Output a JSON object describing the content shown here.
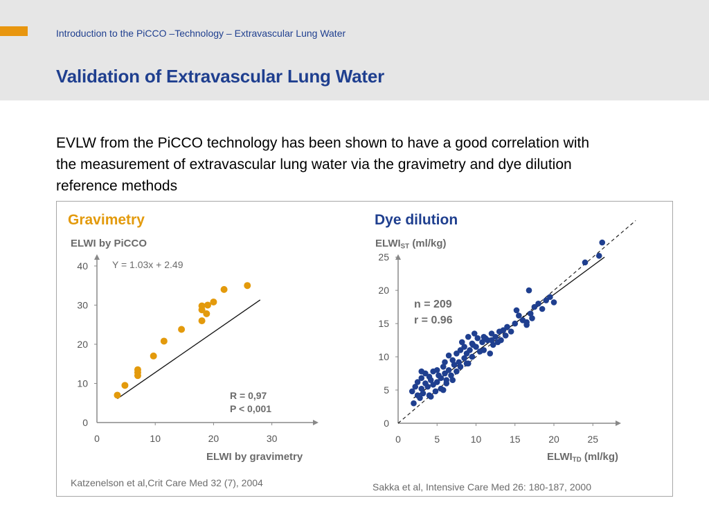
{
  "header": {
    "breadcrumb": "Introduction to the PiCCO –Technology – Extravascular Lung Water",
    "title": "Validation of Extravascular Lung Water"
  },
  "intro": "EVLW from the PiCCO technology has been shown to have a good correlation with the measurement of extravascular lung water via the gravimetry and dye dilution reference methods",
  "colors": {
    "accent": "#e8960f",
    "brand_blue": "#1f3f8f",
    "gravimetry": "#e39a0c",
    "dye": "#1f3f8f"
  },
  "chart_data": [
    {
      "type": "scatter",
      "title": "Gravimetry",
      "ylabel": "ELWI by PiCCO",
      "xlabel": "ELWI by gravimetry",
      "xlim": [
        0,
        38
      ],
      "ylim": [
        0,
        43
      ],
      "xticks": [
        0,
        10,
        20,
        30
      ],
      "yticks": [
        0,
        10,
        20,
        30,
        40
      ],
      "equation": "Y = 1.03x + 2.49",
      "stats": [
        "R = 0,97",
        "P < 0,001"
      ],
      "citation": "Katzenelson et al,Crit Care Med 32 (7), 2004",
      "regression": {
        "slope": 1.03,
        "intercept": 2.49,
        "x_range": [
          3.5,
          28
        ]
      },
      "points": {
        "x": [
          3.5,
          4.8,
          7.0,
          7.0,
          7.0,
          9.7,
          11.5,
          14.5,
          18.0,
          18.0,
          18.0,
          18.8,
          19.0,
          20.0,
          21.8,
          25.8
        ],
        "y": [
          7.0,
          9.5,
          12.0,
          12.8,
          13.5,
          17.0,
          20.8,
          23.8,
          26.0,
          28.8,
          29.8,
          27.8,
          30.0,
          30.8,
          34.0,
          35.0
        ]
      }
    },
    {
      "type": "scatter",
      "title": "Dye dilution",
      "ylabel": {
        "main": "ELWI",
        "sub": "ST",
        "unit": "(ml/kg)"
      },
      "xlabel": {
        "main": "ELWI",
        "sub": "TD",
        "unit": "(ml/kg)"
      },
      "xlim": [
        0,
        28
      ],
      "ylim": [
        0,
        27
      ],
      "xticks": [
        0,
        5,
        10,
        15,
        20,
        25
      ],
      "yticks": [
        0,
        5,
        10,
        15,
        20,
        25
      ],
      "stats": [
        "n = 209",
        "r = 0.96"
      ],
      "citation": "Sakka et al, Intensive Care Med 26: 180-187, 2000",
      "identity_line": true,
      "regression": {
        "x_range": [
          2,
          26.5
        ],
        "y_range": [
          3.8,
          25.0
        ]
      },
      "points": {
        "x": [
          1.8,
          2.0,
          2.2,
          2.5,
          2.5,
          2.8,
          3.0,
          3.0,
          3.2,
          3.5,
          3.5,
          3.8,
          4.0,
          4.0,
          4.2,
          4.5,
          4.5,
          4.8,
          5.0,
          5.0,
          5.2,
          5.5,
          5.5,
          5.8,
          6.0,
          6.0,
          6.2,
          6.5,
          6.5,
          6.8,
          7.0,
          7.0,
          7.2,
          7.5,
          7.5,
          7.8,
          8.0,
          8.0,
          8.2,
          8.5,
          8.5,
          8.8,
          9.0,
          9.0,
          9.2,
          9.5,
          9.5,
          9.8,
          10.0,
          10.2,
          10.5,
          10.8,
          11.0,
          11.0,
          11.2,
          11.5,
          11.8,
          12.0,
          12.2,
          12.5,
          12.8,
          13.0,
          13.2,
          13.5,
          13.8,
          14.0,
          14.5,
          15.0,
          15.2,
          15.5,
          16.0,
          16.5,
          16.8,
          17.0,
          17.2,
          17.5,
          18.0,
          18.5,
          19.0,
          19.5,
          20.0,
          4.2,
          6.2,
          8.8,
          12.0,
          16.5,
          24.0,
          25.8,
          26.2,
          3.0,
          5.8,
          9.6
        ],
        "y": [
          4.8,
          3.0,
          5.5,
          4.2,
          6.2,
          3.8,
          5.2,
          6.8,
          4.5,
          6.0,
          7.5,
          5.5,
          4.2,
          7.0,
          6.5,
          5.8,
          7.8,
          4.8,
          6.2,
          8.0,
          7.2,
          6.8,
          5.2,
          8.5,
          7.5,
          9.2,
          6.5,
          8.0,
          10.2,
          7.2,
          9.5,
          6.5,
          8.8,
          10.5,
          7.8,
          9.2,
          11.0,
          8.5,
          12.2,
          9.8,
          11.5,
          10.5,
          9.0,
          13.0,
          11.0,
          12.0,
          10.0,
          13.5,
          11.5,
          12.8,
          10.8,
          12.2,
          13.0,
          11.0,
          12.8,
          12.5,
          10.5,
          13.5,
          11.8,
          13.0,
          12.2,
          13.8,
          12.5,
          14.0,
          13.2,
          14.5,
          13.8,
          15.0,
          17.0,
          16.2,
          15.5,
          14.8,
          20.0,
          16.5,
          15.8,
          17.5,
          18.0,
          17.2,
          18.5,
          19.0,
          18.2,
          4.0,
          6.0,
          9.0,
          12.5,
          15.2,
          24.2,
          25.2,
          27.2,
          7.8,
          5.0,
          11.8
        ]
      }
    }
  ]
}
